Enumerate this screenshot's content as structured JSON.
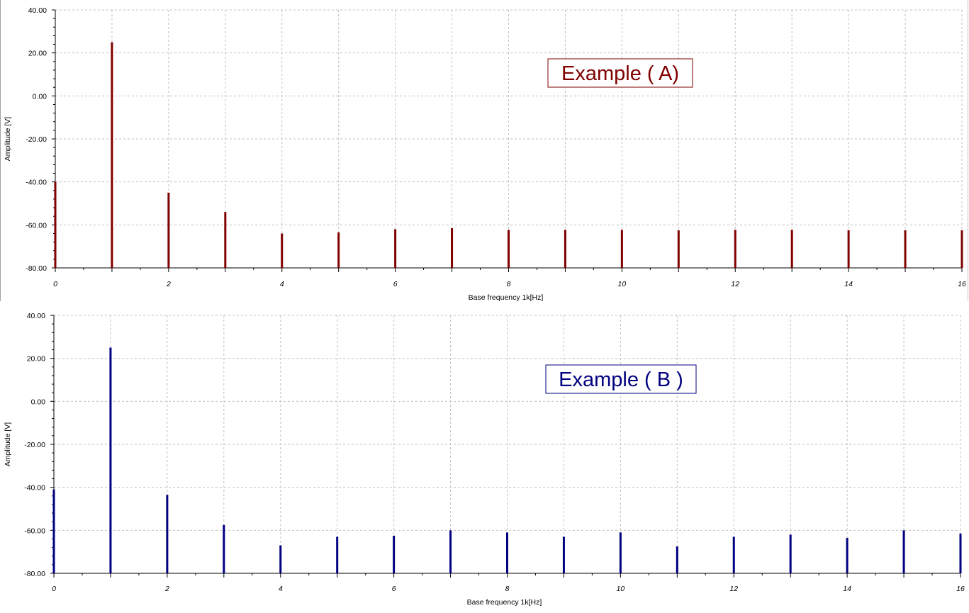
{
  "colors": {
    "series_a": "#800000",
    "series_b": "#000080",
    "grid": "#c0c0c0",
    "axis": "#000000"
  },
  "chart_data": [
    {
      "type": "bar",
      "annotation": "Example ( A)",
      "xlabel": "Base frequency 1k[Hz]",
      "ylabel": "Amplitude [V]",
      "xlim": [
        0,
        16
      ],
      "ylim": [
        -80,
        40
      ],
      "x_ticks": [
        0,
        2,
        4,
        6,
        8,
        10,
        12,
        14,
        16
      ],
      "y_ticks": [
        40,
        20,
        0,
        -20,
        -40,
        -60,
        -80
      ],
      "y_tick_labels": [
        "40.00",
        "20.00",
        "0.00",
        "-20.00",
        "-40.00",
        "-60.00",
        "-80.00"
      ],
      "grid": true,
      "color": "#800000",
      "x": [
        0,
        1,
        2,
        3,
        4,
        5,
        6,
        7,
        8,
        9,
        10,
        11,
        12,
        13,
        14,
        15,
        16
      ],
      "values": [
        -40.0,
        25.0,
        -45.0,
        -54.0,
        -64.0,
        -63.5,
        -62.0,
        -61.5,
        -62.3,
        -62.3,
        -62.3,
        -62.5,
        -62.3,
        -62.3,
        -62.5,
        -62.5,
        -62.5
      ]
    },
    {
      "type": "bar",
      "annotation": "Example ( B )",
      "xlabel": "Base frequency 1k[Hz]",
      "ylabel": "Amplitude [V]",
      "xlim": [
        0,
        16
      ],
      "ylim": [
        -80,
        40
      ],
      "x_ticks": [
        0,
        2,
        4,
        6,
        8,
        10,
        12,
        14,
        16
      ],
      "y_ticks": [
        40,
        20,
        0,
        -20,
        -40,
        -60,
        -80
      ],
      "y_tick_labels": [
        "40.00",
        "20.00",
        "0.00",
        "-20.00",
        "-40.00",
        "-60.00",
        "-80.00"
      ],
      "grid": true,
      "color": "#000080",
      "x": [
        0,
        1,
        2,
        3,
        4,
        5,
        6,
        7,
        8,
        9,
        10,
        11,
        12,
        13,
        14,
        15,
        16
      ],
      "values": [
        -41.0,
        25.0,
        -43.5,
        -57.5,
        -67.0,
        -63.0,
        -62.5,
        -60.0,
        -61.0,
        -63.0,
        -61.0,
        -67.5,
        -63.0,
        -62.0,
        -63.5,
        -60.0,
        -61.5
      ]
    }
  ]
}
